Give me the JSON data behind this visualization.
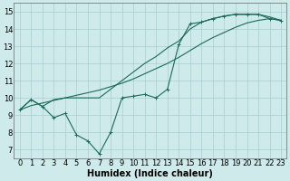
{
  "xlabel": "Humidex (Indice chaleur)",
  "xlim": [
    -0.5,
    23.5
  ],
  "ylim": [
    6.5,
    15.5
  ],
  "background_color": "#ceeaea",
  "grid_color": "#a8d0d0",
  "line_color": "#1a6b5a",
  "line1_y": [
    9.3,
    9.9,
    9.5,
    8.85,
    9.1,
    7.85,
    7.5,
    6.75,
    8.0,
    10.0,
    10.1,
    10.2,
    10.0,
    10.5,
    13.1,
    14.3,
    14.4,
    14.6,
    14.75,
    14.85,
    14.85,
    14.85,
    14.6,
    14.5
  ],
  "line2_y": [
    9.3,
    9.55,
    9.7,
    9.85,
    10.0,
    10.15,
    10.3,
    10.45,
    10.65,
    10.85,
    11.1,
    11.4,
    11.7,
    12.0,
    12.35,
    12.75,
    13.15,
    13.5,
    13.8,
    14.1,
    14.35,
    14.5,
    14.6,
    14.5
  ],
  "line3_y": [
    9.3,
    9.9,
    9.5,
    9.9,
    10.0,
    10.0,
    10.0,
    10.0,
    10.5,
    11.0,
    11.5,
    12.0,
    12.4,
    12.9,
    13.3,
    14.0,
    14.4,
    14.6,
    14.75,
    14.85,
    14.85,
    14.85,
    14.7,
    14.5
  ],
  "fontsize_label": 7,
  "fontsize_tick": 6
}
